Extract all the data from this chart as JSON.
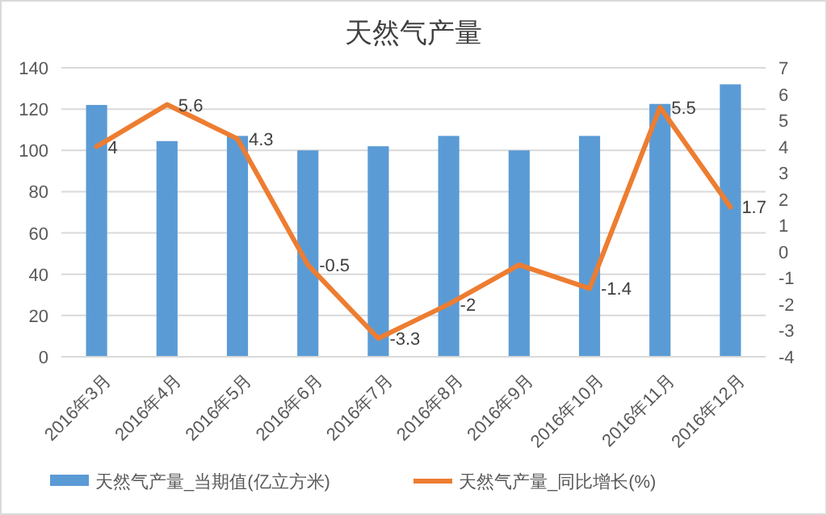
{
  "chart_data": {
    "type": "bar",
    "title": "天然气产量",
    "categories": [
      "2016年3月",
      "2016年4月",
      "2016年5月",
      "2016年6月",
      "2016年7月",
      "2016年8月",
      "2016年9月",
      "2016年10月",
      "2016年11月",
      "2016年12月"
    ],
    "series": [
      {
        "name": "天然气产量_当期值(亿立方米)",
        "color": "#5b9bd5",
        "values": [
          122,
          104.5,
          107,
          100,
          102,
          107,
          100,
          107,
          122.5,
          132
        ]
      },
      {
        "name": "天然气产量_同比增长(%)",
        "type": "line",
        "axis": "y2",
        "color": "#ed7d31",
        "values": [
          4,
          5.6,
          4.3,
          -0.5,
          -3.3,
          -2,
          -0.5,
          -1.4,
          5.5,
          1.7
        ],
        "value_labels": [
          "4",
          "5.6",
          "4.3",
          "-0.5",
          "-3.3",
          "-2",
          null,
          "-1.4",
          "5.5",
          "1.7"
        ]
      }
    ],
    "ylim": [
      0,
      140
    ],
    "yticks": [
      0,
      20,
      40,
      60,
      80,
      100,
      120,
      140
    ],
    "y2lim": [
      -4,
      7
    ],
    "y2ticks": [
      -4,
      -3,
      -2,
      -1,
      0,
      1,
      2,
      3,
      4,
      5,
      6,
      7
    ],
    "grid": "y",
    "legend": "bottom",
    "marker": "none"
  }
}
